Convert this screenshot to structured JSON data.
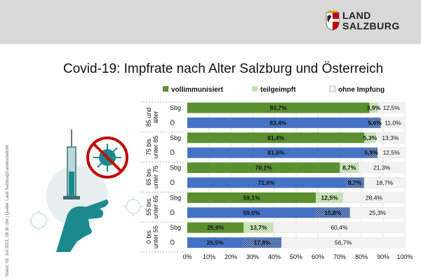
{
  "logo": {
    "line1": "LAND",
    "line2": "SALZBURG"
  },
  "side_note": "Stand: 09. Juli 2021, 08.30 Uhr | Quelle: Land Salzburg/Landesstatistik",
  "colors": {
    "vollimmunisiert_sbg": "#5b8f2f",
    "vollimmunisiert_oe": "#4472c4",
    "teilgeimpft_sbg": "#a9d18e",
    "teilgeimpft_oe": "#2f5597",
    "ohne_impfung": "#f2f2f2",
    "topbar": "#d9d9d9"
  },
  "chart_data": {
    "type": "bar",
    "orientation": "horizontal",
    "stacked": true,
    "title": "Covid-19: Impfrate nach Alter Salzburg und Österreich",
    "legend": [
      "vollimmunisiert",
      "teilgeimpft",
      "ohne Impfung"
    ],
    "legend_position": "top",
    "xlim": [
      0,
      100
    ],
    "x_ticks": [
      "0%",
      "10%",
      "20%",
      "30%",
      "40%",
      "50%",
      "60%",
      "70%",
      "80%",
      "90%",
      "100%"
    ],
    "groups": [
      {
        "label": "85 und älter",
        "rows": [
          {
            "region": "Sbg",
            "vollimmunisiert": 83.7,
            "teilgeimpft": 3.9,
            "ohne_impfung": 12.5,
            "labels": [
              "83,7%",
              "3,9%",
              "12,5%"
            ]
          },
          {
            "region": "Ö",
            "vollimmunisiert": 83.4,
            "teilgeimpft": 5.6,
            "ohne_impfung": 11.0,
            "labels": [
              "83,4%",
              "5,6%",
              "11,0%"
            ]
          }
        ]
      },
      {
        "label": "75 bis unter 85",
        "rows": [
          {
            "region": "Sbg",
            "vollimmunisiert": 81.4,
            "teilgeimpft": 5.3,
            "ohne_impfung": 13.3,
            "labels": [
              "81,4%",
              "5,3%",
              "13,3%"
            ]
          },
          {
            "region": "Ö",
            "vollimmunisiert": 81.6,
            "teilgeimpft": 5.9,
            "ohne_impfung": 12.5,
            "labels": [
              "81,6%",
              "5,9%",
              "12,5%"
            ]
          }
        ]
      },
      {
        "label": "65 bis unter 75",
        "rows": [
          {
            "region": "Sbg",
            "vollimmunisiert": 70.1,
            "teilgeimpft": 8.7,
            "ohne_impfung": 21.3,
            "labels": [
              "70,1%",
              "8,7%",
              "21,3%"
            ]
          },
          {
            "region": "Ö",
            "vollimmunisiert": 72.6,
            "teilgeimpft": 8.7,
            "ohne_impfung": 18.7,
            "labels": [
              "72,6%",
              "8,7%",
              "18,7%"
            ]
          }
        ]
      },
      {
        "label": "55 bis unter 65",
        "rows": [
          {
            "region": "Sbg",
            "vollimmunisiert": 59.1,
            "teilgeimpft": 12.5,
            "ohne_impfung": 28.4,
            "labels": [
              "59,1%",
              "12,5%",
              "28,4%"
            ]
          },
          {
            "region": "Ö",
            "vollimmunisiert": 59.0,
            "teilgeimpft": 15.8,
            "ohne_impfung": 25.3,
            "labels": [
              "59,0%",
              "15,8%",
              "25,3%"
            ]
          }
        ]
      },
      {
        "label": "0 bis unter 55",
        "rows": [
          {
            "region": "Sbg",
            "vollimmunisiert": 25.9,
            "teilgeimpft": 13.7,
            "ohne_impfung": 60.4,
            "labels": [
              "25,9%",
              "13,7%",
              "60,4%"
            ]
          },
          {
            "region": "Ö",
            "vollimmunisiert": 25.5,
            "teilgeimpft": 17.8,
            "ohne_impfung": 56.7,
            "labels": [
              "25,5%",
              "17,8%",
              "56,7%"
            ]
          }
        ]
      }
    ]
  }
}
